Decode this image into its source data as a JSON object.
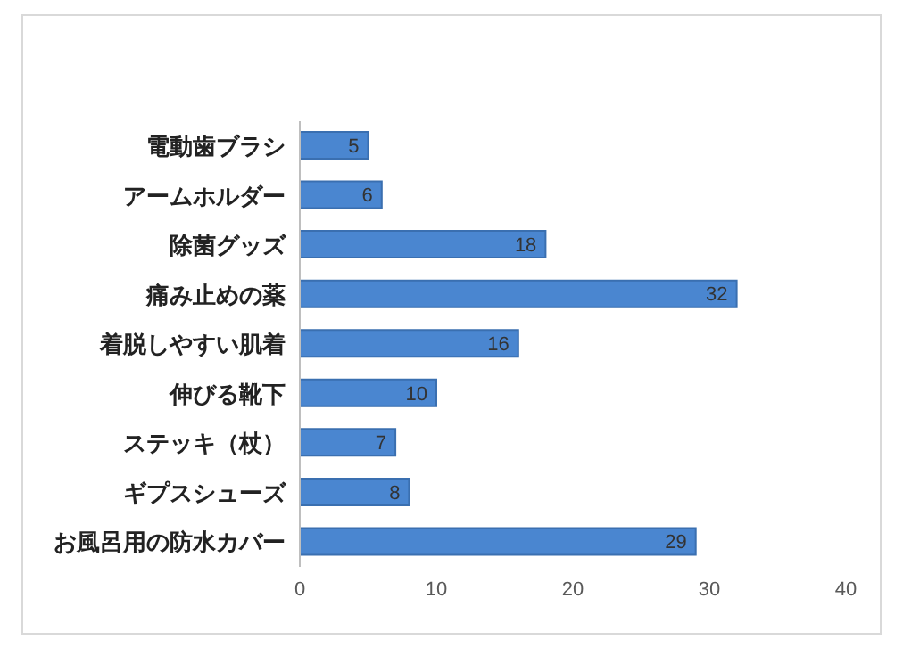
{
  "chart_data": {
    "type": "bar",
    "orientation": "horizontal",
    "categories": [
      "電動歯ブラシ",
      "アームホルダー",
      "除菌グッズ",
      "痛み止めの薬",
      "着脱しやすい肌着",
      "伸びる靴下",
      "ステッキ（杖）",
      "ギプスシューズ",
      "お風呂用の防水カバー"
    ],
    "values": [
      5,
      6,
      18,
      32,
      16,
      10,
      7,
      8,
      29
    ],
    "color": "#4a86d0",
    "xlim": [
      0,
      40
    ],
    "xticks": [
      0,
      10,
      20,
      30,
      40
    ],
    "grid": false,
    "data_labels": true
  }
}
